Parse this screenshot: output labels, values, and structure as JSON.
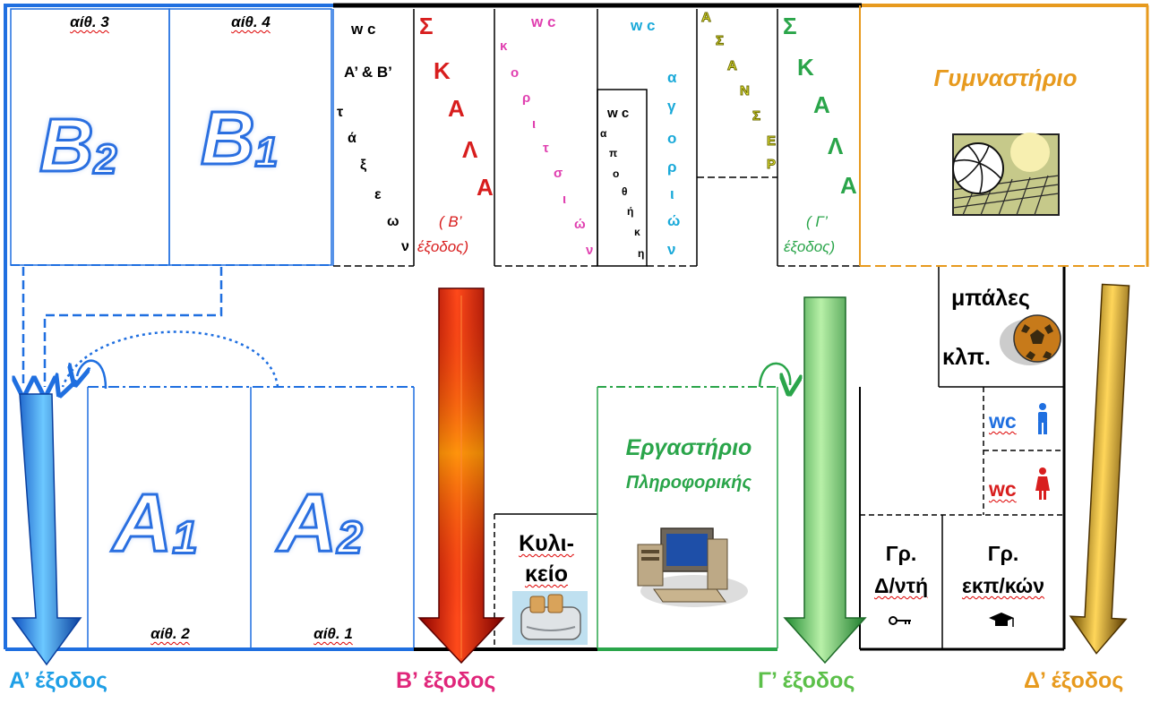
{
  "rooms": {
    "top_left_classroom_label": "αίθ. 3",
    "top_left_classroom_name": "B",
    "top_left_classroom_sub": "2",
    "top_second_classroom_label": "αίθ. 4",
    "top_second_classroom_name": "B",
    "top_second_classroom_sub": "1",
    "bottom_first_classroom_name": "A",
    "bottom_first_classroom_sub": "1",
    "bottom_first_classroom_label": "αίθ. 2",
    "bottom_second_classroom_name": "A",
    "bottom_second_classroom_sub": "2",
    "bottom_second_classroom_label": "αίθ. 1"
  },
  "wc_ab": {
    "title": "w c",
    "subtitle": "Α’ & Β’",
    "vertical_word": [
      "τ",
      "ά",
      "ξ",
      "ε",
      "ω",
      "ν"
    ]
  },
  "stairs_b": {
    "letters": [
      "Σ",
      "Κ",
      "Α",
      "Λ",
      "Α"
    ],
    "note_line1": "( Β’",
    "note_line2": "έξοδος)"
  },
  "wc_girls": {
    "title": "w c",
    "vertical_word": [
      "κ",
      "ο",
      "ρ",
      "ι",
      "τ",
      "σ",
      "ι",
      "ώ",
      "ν"
    ]
  },
  "storage": {
    "title": "w c",
    "vertical_word": [
      "α",
      "π",
      "ο",
      "θ",
      "ή",
      "κ",
      "η"
    ]
  },
  "wc_boys": {
    "title": "w c",
    "vertical_word": [
      "α",
      "γ",
      "ο",
      "ρ",
      "ι",
      "ώ",
      "ν"
    ]
  },
  "elevator": {
    "vertical_word": [
      "Α",
      "Σ",
      "Α",
      "Ν",
      "Σ",
      "Ε",
      "Ρ"
    ]
  },
  "stairs_g": {
    "letters": [
      "Σ",
      "Κ",
      "Α",
      "Λ",
      "Α"
    ],
    "note_line1": "( Γ’",
    "note_line2": "έξοδος)"
  },
  "gym": {
    "title": "Γυμναστήριο",
    "icon": "volleyball-net-icon"
  },
  "balls_room": {
    "line1": "μπάλες",
    "line2": "κλπ.",
    "icon": "ball-icon"
  },
  "wc_men": {
    "label": "wc",
    "icon": "man-icon"
  },
  "wc_women": {
    "label": "wc",
    "icon": "woman-icon"
  },
  "canteen": {
    "line1": "Κυλι-",
    "line2": "κείο",
    "icon": "toaster-icon"
  },
  "computer_lab": {
    "line1": "Εργαστήριο",
    "line2": "Πληροφορικής",
    "icon": "computer-icon"
  },
  "director_office": {
    "line1": "Γρ.",
    "line2": "Δ/ντή",
    "icon": "key-icon"
  },
  "teachers_office": {
    "line1": "Γρ.",
    "line2": "εκπ/κών",
    "icon": "graduation-cap-icon"
  },
  "exits": {
    "a": "Α’ έξοδος",
    "b": "Β’ έξοδος",
    "g": "Γ’ έξοδος",
    "d": "Δ’ έξοδος"
  },
  "colors": {
    "blue": "#1f6fe0",
    "red": "#d81e1e",
    "pink": "#e0267a",
    "magenta": "#e040b0",
    "cyan": "#19a9d9",
    "green": "#2aa54a",
    "orange": "#e79a1e",
    "olive": "#b8b800"
  }
}
